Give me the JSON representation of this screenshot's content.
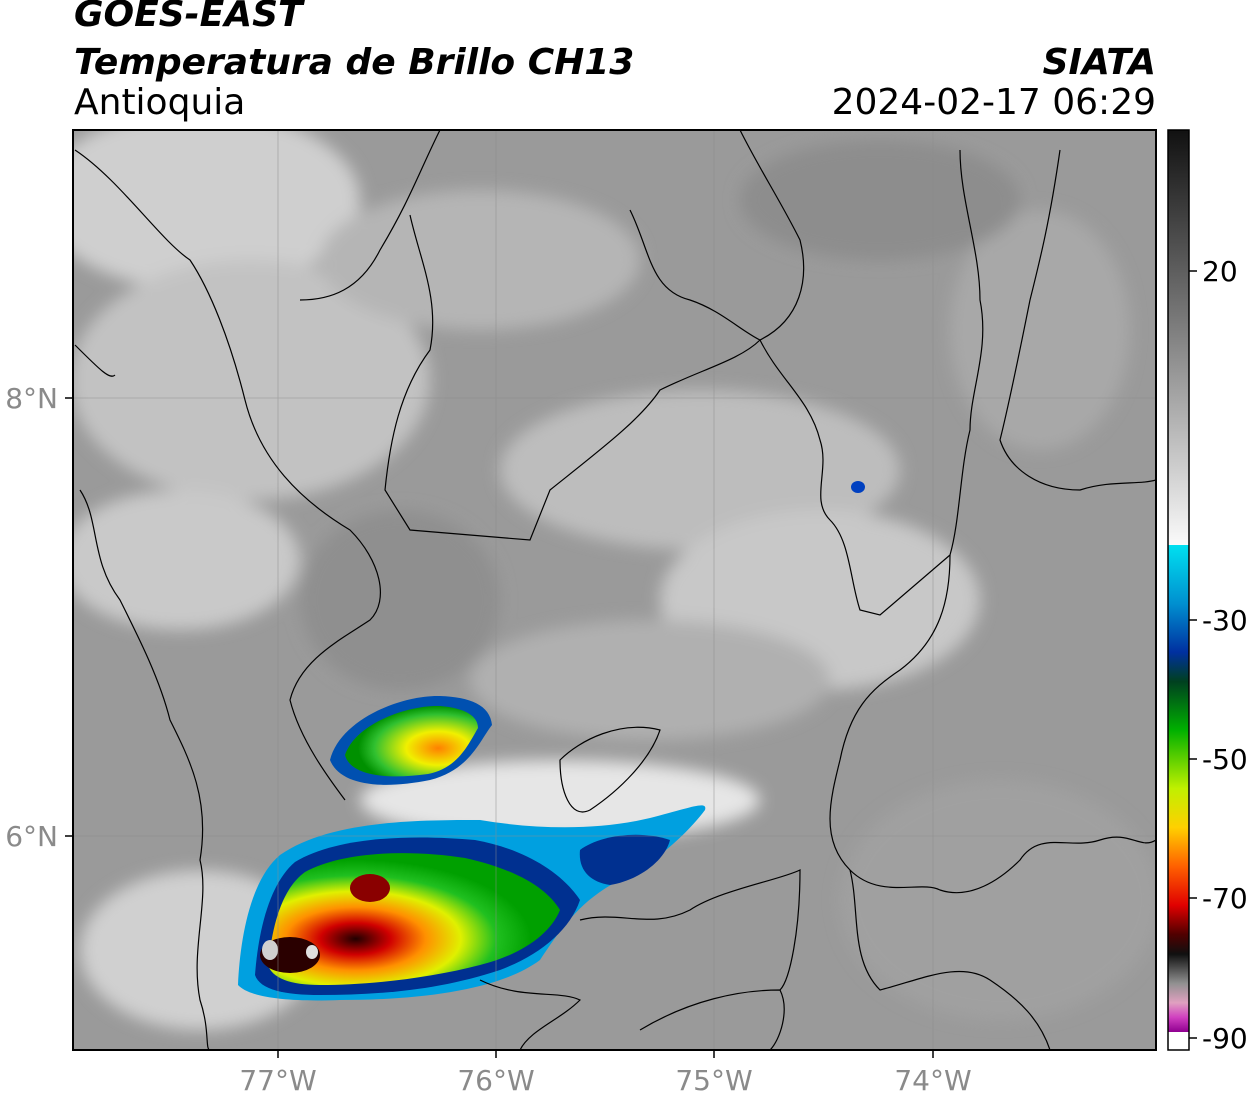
{
  "header": {
    "satellite": "GOES-EAST",
    "product": "Temperatura de Brillo CH13",
    "region": "Antioquia",
    "organization": "SIATA",
    "datetime": "2024-02-17 06:29"
  },
  "axes": {
    "lon_ticks": [
      "77°W",
      "76°W",
      "75°W",
      "74°W"
    ],
    "lat_ticks": [
      "8°N",
      "6°N"
    ]
  },
  "colorbar": {
    "ticks": [
      "20",
      "-30",
      "-50",
      "-70",
      "-90"
    ]
  },
  "colors": {
    "frame": "#000000",
    "tick_text": "#8a8a8a"
  }
}
